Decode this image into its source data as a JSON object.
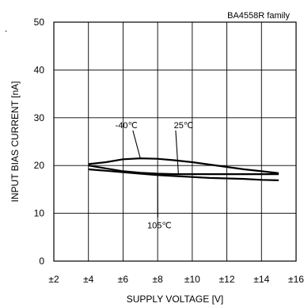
{
  "chart_data": {
    "type": "line",
    "title": "",
    "legend_label": "BA4558R  family",
    "xlabel": "SUPPLY VOLTAGE [V]",
    "ylabel": "INPUT BIAS CURRENT [nA]",
    "xlim": [
      2,
      16
    ],
    "ylim": [
      0,
      50
    ],
    "x_ticks": [
      2,
      4,
      6,
      8,
      10,
      12,
      14,
      16
    ],
    "x_tick_labels": [
      "±2",
      "±4",
      "±6",
      "±8",
      "±10",
      "±12",
      "±14",
      "±16"
    ],
    "y_ticks": [
      0,
      10,
      20,
      30,
      40,
      50
    ],
    "y_tick_labels": [
      "0",
      "10",
      "20",
      "30",
      "40",
      "50"
    ],
    "grid": true,
    "stray_mark": ".",
    "series": [
      {
        "name": "-40℃",
        "x": [
          4,
          5,
          6,
          7,
          8,
          9,
          10,
          11,
          12,
          13,
          14,
          15
        ],
        "y": [
          20.3,
          20.7,
          21.3,
          21.5,
          21.4,
          21.1,
          20.7,
          20.2,
          19.7,
          19.2,
          18.8,
          18.4
        ]
      },
      {
        "name": "25℃",
        "x": [
          4,
          5,
          6,
          7,
          8,
          9,
          10,
          11,
          12,
          13,
          14,
          15
        ],
        "y": [
          20.0,
          19.4,
          18.8,
          18.5,
          18.3,
          18.2,
          18.2,
          18.2,
          18.2,
          18.2,
          18.2,
          18.2
        ]
      },
      {
        "name": "105℃",
        "x": [
          4,
          5,
          6,
          7,
          8,
          9,
          10,
          11,
          12,
          13,
          14,
          15
        ],
        "y": [
          19.2,
          18.9,
          18.6,
          18.3,
          18.0,
          17.8,
          17.6,
          17.4,
          17.3,
          17.2,
          17.0,
          16.9
        ]
      }
    ],
    "annotations": [
      {
        "series": "-40℃",
        "text": "-40℃",
        "x": 6.2,
        "y": 28.5
      },
      {
        "series": "25℃",
        "text": "25℃",
        "x": 9.5,
        "y": 28.5
      },
      {
        "series": "105℃",
        "text": "105℃",
        "x": 8.1,
        "y": 7.5
      }
    ],
    "series_color": "#000000"
  }
}
